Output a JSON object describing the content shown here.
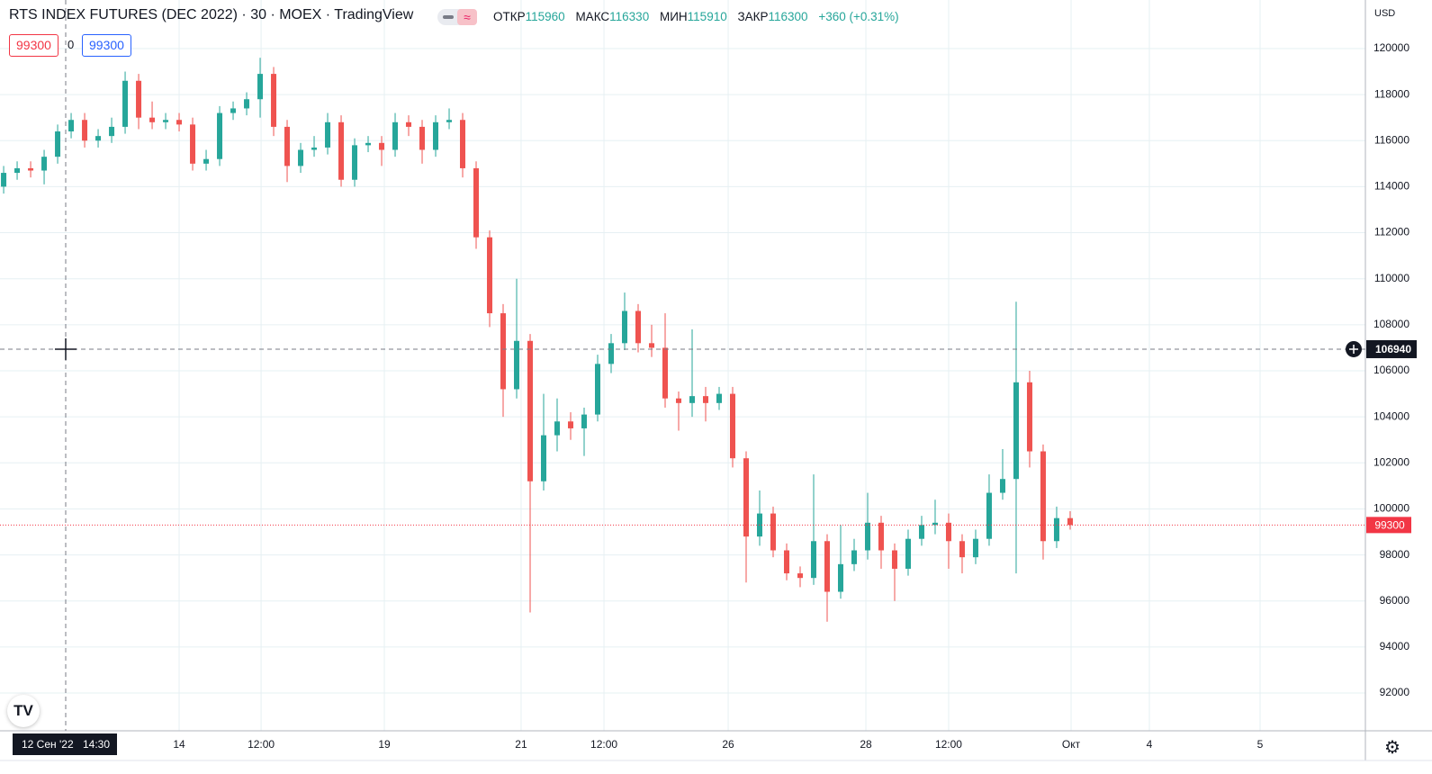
{
  "header": {
    "open_label": "ОТКР",
    "open": 115960,
    "high_label": "МАКС",
    "high": 116330,
    "low_label": "МИН",
    "low": 115910,
    "close_label": "ЗАКР",
    "close": 116300,
    "change": "+360 (+0.31%)",
    "sell": 99300,
    "spread": 0,
    "buy": 99300,
    "currency": "USD"
  },
  "chart_data": {
    "type": "candlestick",
    "title": "RTS INDEX FUTURES (DEC 2022) · 30 · MOEX · TradingView",
    "up_color": "#26a69a",
    "down_color": "#ef5350",
    "grid": true,
    "xlim": [
      -0.27,
      100.87
    ],
    "xticks": [
      {
        "value": 13,
        "label": "14"
      },
      {
        "value": 19.07,
        "label": "12:00"
      },
      {
        "value": 28.2,
        "label": "19"
      },
      {
        "value": 38.33,
        "label": "21"
      },
      {
        "value": 44.47,
        "label": "12:00"
      },
      {
        "value": 53.67,
        "label": "26"
      },
      {
        "value": 63.87,
        "label": "28"
      },
      {
        "value": 70,
        "label": "12:00"
      },
      {
        "value": 79.07,
        "label": "Окт"
      },
      {
        "value": 84.87,
        "label": "4"
      },
      {
        "value": 93.07,
        "label": "5"
      }
    ],
    "ylim": [
      90360,
      122110
    ],
    "yticks": [
      92000,
      94000,
      96000,
      98000,
      100000,
      102000,
      104000,
      106000,
      108000,
      110000,
      112000,
      114000,
      116000,
      118000,
      120000
    ],
    "open": [
      114000,
      114600,
      114800,
      114700,
      115300,
      116400,
      116900,
      116000,
      116200,
      116600,
      118600,
      117000,
      116800,
      116900,
      116700,
      115000,
      115200,
      117200,
      117400,
      117800,
      118900,
      116600,
      114900,
      115600,
      115700,
      116800,
      114300,
      115800,
      115900,
      115600,
      116800,
      116600,
      115600,
      116800,
      116900,
      114800,
      111800,
      108500,
      105200,
      107300,
      101200,
      103200,
      103800,
      103500,
      104100,
      106300,
      107200,
      108600,
      107200,
      107000,
      104800,
      104600,
      104900,
      104600,
      105000,
      102200,
      98800,
      99800,
      98200,
      97200,
      97000,
      98600,
      96400,
      97600,
      98200,
      99400,
      98200,
      97400,
      98700,
      99300,
      99400,
      98600,
      97900,
      98700,
      100700,
      101300,
      105500,
      102500,
      98600,
      99600
    ],
    "high": [
      114900,
      115100,
      115100,
      115600,
      116700,
      117200,
      117200,
      116500,
      117000,
      119000,
      118900,
      117700,
      117200,
      117200,
      117000,
      115600,
      117500,
      117700,
      118100,
      119600,
      119200,
      116900,
      115900,
      116200,
      117200,
      117100,
      116100,
      116200,
      116200,
      117200,
      117100,
      116900,
      117100,
      117400,
      117200,
      115100,
      112100,
      108900,
      110000,
      107600,
      105000,
      104800,
      104200,
      104400,
      106700,
      107600,
      109400,
      108900,
      108000,
      108500,
      105100,
      107800,
      105300,
      105300,
      105300,
      102500,
      100800,
      100100,
      98500,
      97500,
      101500,
      98900,
      99300,
      98700,
      100700,
      99700,
      98500,
      99100,
      99700,
      100400,
      99800,
      98900,
      99100,
      101500,
      102600,
      109000,
      106000,
      102800,
      100100,
      99900
    ],
    "low": [
      113700,
      114300,
      114400,
      114100,
      115000,
      116100,
      115700,
      115700,
      115900,
      116300,
      116500,
      116500,
      116500,
      116400,
      114700,
      114700,
      114900,
      116900,
      117100,
      117000,
      116200,
      114200,
      114600,
      115300,
      115400,
      114000,
      114000,
      115500,
      114900,
      115300,
      116200,
      115000,
      115300,
      116500,
      114400,
      111300,
      107900,
      104000,
      104800,
      95500,
      100800,
      102500,
      103000,
      102300,
      103800,
      105900,
      106900,
      106800,
      106600,
      104400,
      103400,
      104000,
      103800,
      104300,
      101800,
      96800,
      98400,
      97900,
      96900,
      96600,
      96700,
      95100,
      96100,
      97300,
      97800,
      97400,
      96000,
      97100,
      98400,
      98900,
      97400,
      97200,
      97600,
      98400,
      100400,
      97200,
      101800,
      97800,
      98300,
      99100
    ],
    "close": [
      114600,
      114800,
      114700,
      115300,
      116400,
      116900,
      116000,
      116200,
      116600,
      118600,
      117000,
      116800,
      116900,
      116700,
      115000,
      115200,
      117200,
      117400,
      117800,
      118900,
      116600,
      114900,
      115600,
      115700,
      116800,
      114300,
      115800,
      115900,
      115600,
      116800,
      116600,
      115600,
      116800,
      116900,
      114800,
      111800,
      108500,
      105200,
      107300,
      101200,
      103200,
      103800,
      103500,
      104100,
      106300,
      107200,
      108600,
      107200,
      107000,
      104800,
      104600,
      104900,
      104600,
      105000,
      102200,
      98800,
      99800,
      98200,
      97200,
      97000,
      98600,
      96400,
      97600,
      98200,
      99400,
      98200,
      97400,
      98700,
      99300,
      99400,
      98600,
      97900,
      98700,
      100700,
      101300,
      105500,
      102500,
      98600,
      99600,
      99300
    ],
    "last_price": 99300,
    "crosshair": {
      "price": 106940,
      "date": "12 Сен '22",
      "time": "14:30"
    }
  }
}
